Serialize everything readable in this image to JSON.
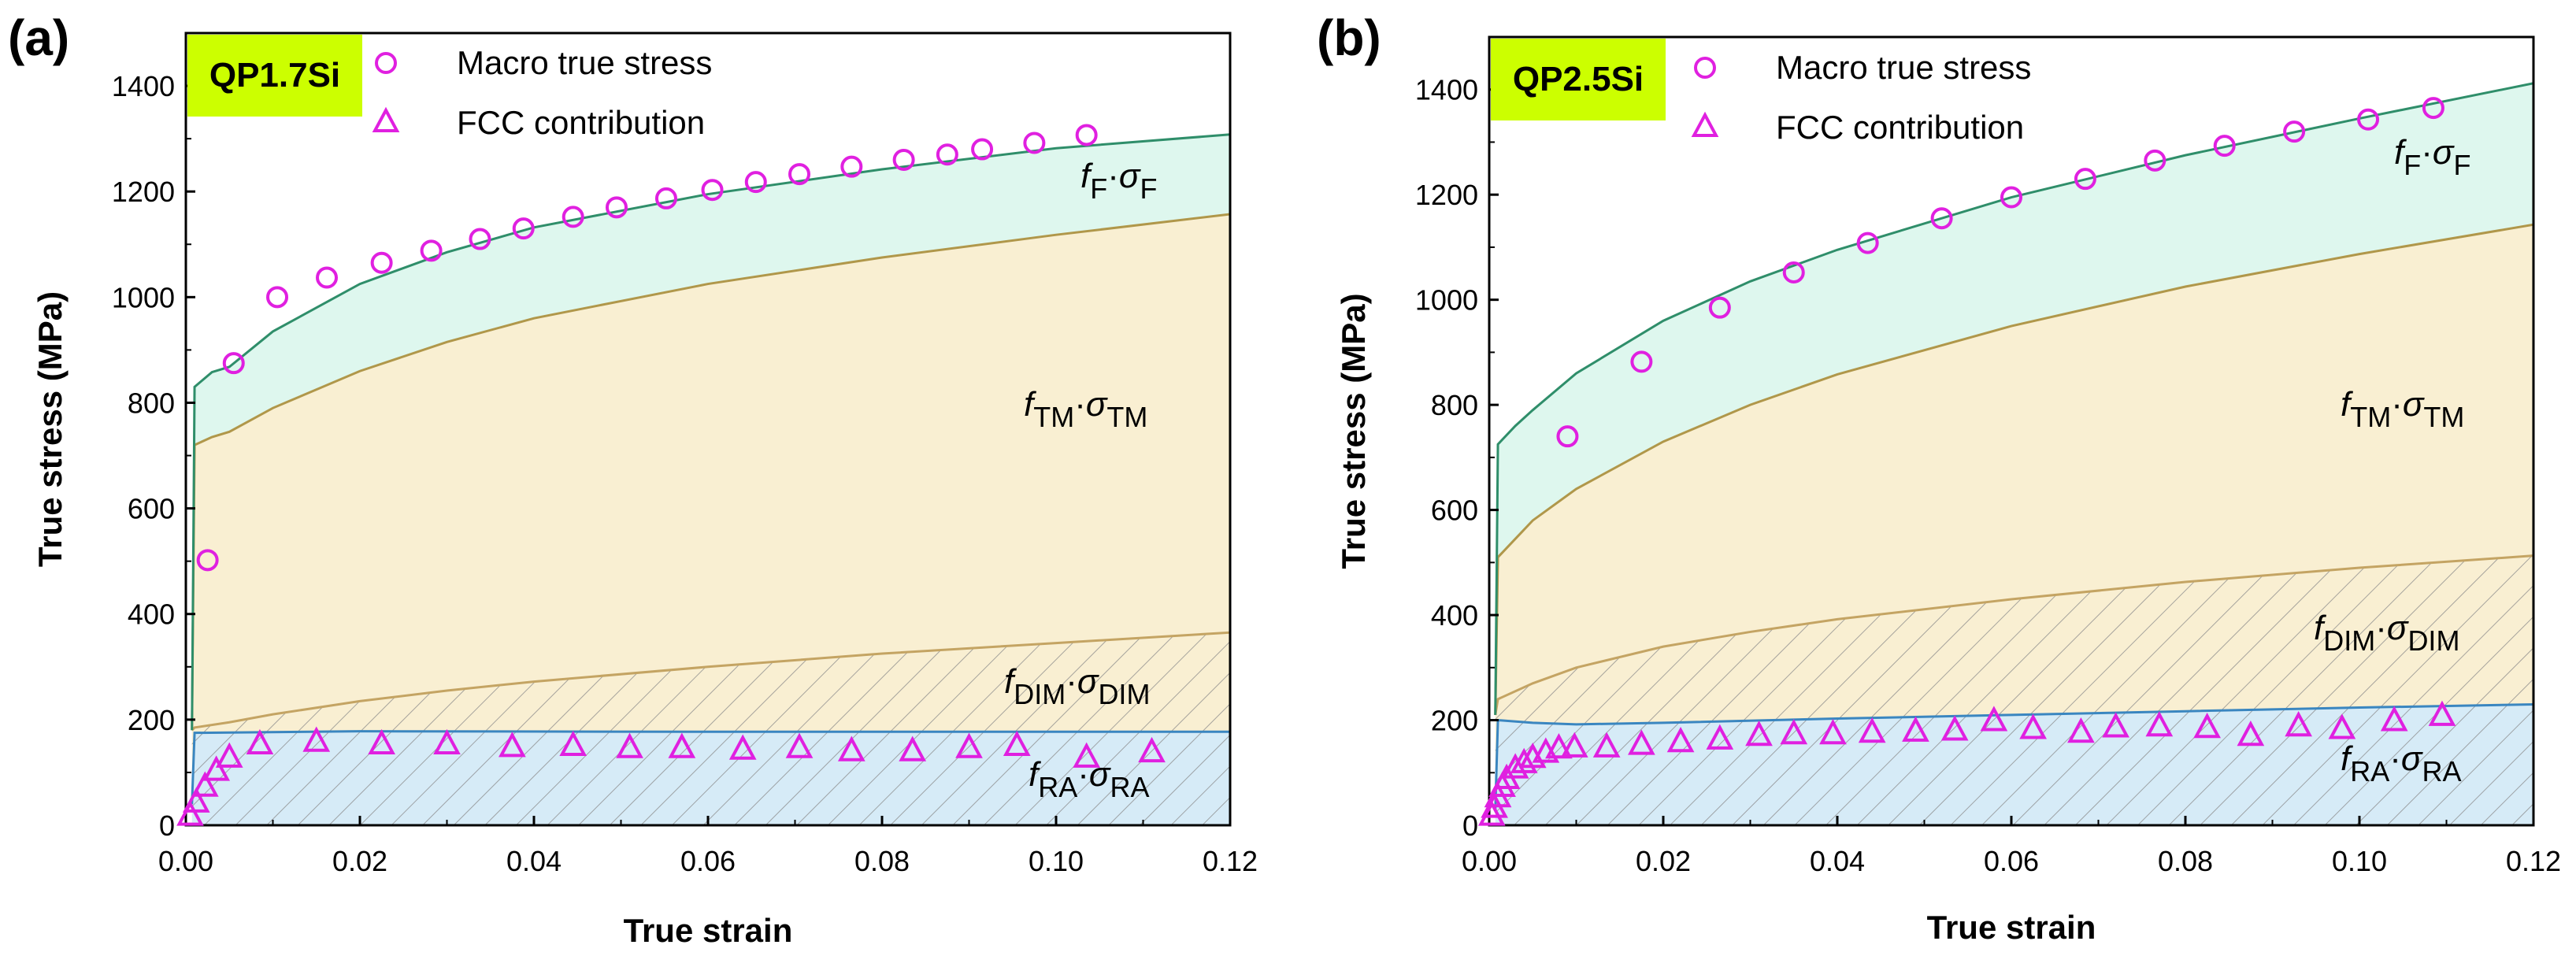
{
  "chart_data": [
    {
      "type": "area",
      "panel_label": "(a)",
      "sample": "QP1.7Si",
      "xlabel": "True strain",
      "ylabel": "True stress (MPa)",
      "xlim": [
        0,
        0.12
      ],
      "ylim": [
        0,
        1500
      ],
      "xticks": [
        "0.00",
        "0.02",
        "0.04",
        "0.06",
        "0.08",
        "0.10",
        "0.12"
      ],
      "yticks": [
        "0",
        "200",
        "400",
        "600",
        "800",
        "1000",
        "1200",
        "1400"
      ],
      "legend": {
        "location": "top",
        "entries": [
          {
            "name": "Macro true stress",
            "marker": "circle"
          },
          {
            "name": "FCC contribution",
            "marker": "triangle"
          }
        ]
      },
      "regions": [
        {
          "key": "RA",
          "label_f": "f",
          "label_f_sub": "RA",
          "label_sigma": "σ",
          "label_sigma_sub": "RA",
          "color": "#d6ebf7",
          "hatched": true
        },
        {
          "key": "DIM",
          "label_f": "f",
          "label_f_sub": "DIM",
          "label_sigma": "σ",
          "label_sigma_sub": "DIM",
          "color": "#f9efd2",
          "hatched": true
        },
        {
          "key": "TM",
          "label_f": "f",
          "label_f_sub": "TM",
          "label_sigma": "σ",
          "label_sigma_sub": "TM",
          "color": "#f9efd2",
          "hatched": false
        },
        {
          "key": "F",
          "label_f": "f",
          "label_f_sub": "F",
          "label_sigma": "σ",
          "label_sigma_sub": "F",
          "color": "#def7ee",
          "hatched": false
        }
      ],
      "boundaries": {
        "RA": [
          [
            0.0007,
            40
          ],
          [
            0.001,
            175
          ],
          [
            0.02,
            178
          ],
          [
            0.06,
            177
          ],
          [
            0.12,
            177
          ]
        ],
        "DIM": [
          [
            0.0007,
            180
          ],
          [
            0.001,
            185
          ],
          [
            0.005,
            195
          ],
          [
            0.01,
            210
          ],
          [
            0.02,
            235
          ],
          [
            0.03,
            255
          ],
          [
            0.04,
            272
          ],
          [
            0.06,
            300
          ],
          [
            0.08,
            325
          ],
          [
            0.1,
            345
          ],
          [
            0.12,
            365
          ]
        ],
        "TM": [
          [
            0.0007,
            180
          ],
          [
            0.001,
            720
          ],
          [
            0.003,
            735
          ],
          [
            0.005,
            745
          ],
          [
            0.01,
            790
          ],
          [
            0.02,
            860
          ],
          [
            0.03,
            915
          ],
          [
            0.04,
            960
          ],
          [
            0.06,
            1025
          ],
          [
            0.08,
            1075
          ],
          [
            0.1,
            1118
          ],
          [
            0.12,
            1157
          ]
        ],
        "F": [
          [
            0.0007,
            180
          ],
          [
            0.001,
            830
          ],
          [
            0.003,
            858
          ],
          [
            0.005,
            868
          ],
          [
            0.01,
            935
          ],
          [
            0.02,
            1025
          ],
          [
            0.03,
            1085
          ],
          [
            0.04,
            1132
          ],
          [
            0.06,
            1195
          ],
          [
            0.08,
            1242
          ],
          [
            0.1,
            1282
          ],
          [
            0.12,
            1308
          ]
        ]
      },
      "series": [
        {
          "name": "Macro true stress",
          "marker": "circle",
          "color": "#e020e0",
          "x": [
            0.0025,
            0.0055,
            0.0105,
            0.0162,
            0.0225,
            0.0282,
            0.0338,
            0.0388,
            0.0445,
            0.0495,
            0.0552,
            0.0605,
            0.0655,
            0.0705,
            0.0765,
            0.0825,
            0.0875,
            0.0915,
            0.0975,
            0.1035
          ],
          "y": [
            502,
            875,
            1000,
            1037,
            1065,
            1088,
            1110,
            1130,
            1152,
            1170,
            1187,
            1203,
            1218,
            1233,
            1247,
            1260,
            1270,
            1280,
            1292,
            1307
          ]
        },
        {
          "name": "FCC contribution",
          "marker": "triangle",
          "color": "#e020e0",
          "x": [
            0.0005,
            0.0012,
            0.0022,
            0.0035,
            0.005,
            0.0085,
            0.015,
            0.0225,
            0.03,
            0.0375,
            0.0445,
            0.051,
            0.057,
            0.064,
            0.0705,
            0.0765,
            0.0835,
            0.09,
            0.0955,
            0.1035,
            0.111
          ],
          "y": [
            20,
            45,
            75,
            105,
            130,
            155,
            160,
            155,
            155,
            150,
            152,
            148,
            148,
            145,
            148,
            142,
            142,
            148,
            152,
            130,
            140
          ]
        }
      ]
    },
    {
      "type": "area",
      "panel_label": "(b)",
      "sample": "QP2.5Si",
      "xlabel": "True strain",
      "ylabel": "True stress (MPa)",
      "xlim": [
        0,
        0.12
      ],
      "ylim": [
        0,
        1500
      ],
      "xticks": [
        "0.00",
        "0.02",
        "0.04",
        "0.06",
        "0.08",
        "0.10",
        "0.12"
      ],
      "yticks": [
        "0",
        "200",
        "400",
        "600",
        "800",
        "1000",
        "1200",
        "1400"
      ],
      "legend": {
        "location": "top",
        "entries": [
          {
            "name": "Macro true stress",
            "marker": "circle"
          },
          {
            "name": "FCC contribution",
            "marker": "triangle"
          }
        ]
      },
      "regions": [
        {
          "key": "RA",
          "label_f": "f",
          "label_f_sub": "RA",
          "label_sigma": "σ",
          "label_sigma_sub": "RA",
          "color": "#d6ebf7",
          "hatched": true
        },
        {
          "key": "DIM",
          "label_f": "f",
          "label_f_sub": "DIM",
          "label_sigma": "σ",
          "label_sigma_sub": "DIM",
          "color": "#f9efd2",
          "hatched": true
        },
        {
          "key": "TM",
          "label_f": "f",
          "label_f_sub": "TM",
          "label_sigma": "σ",
          "label_sigma_sub": "TM",
          "color": "#f9efd2",
          "hatched": false
        },
        {
          "key": "F",
          "label_f": "f",
          "label_f_sub": "F",
          "label_sigma": "σ",
          "label_sigma_sub": "F",
          "color": "#def7ee",
          "hatched": false
        }
      ],
      "boundaries": {
        "RA": [
          [
            0.0007,
            30
          ],
          [
            0.001,
            200
          ],
          [
            0.005,
            195
          ],
          [
            0.01,
            192
          ],
          [
            0.02,
            195
          ],
          [
            0.04,
            203
          ],
          [
            0.06,
            210
          ],
          [
            0.08,
            217
          ],
          [
            0.1,
            224
          ],
          [
            0.12,
            230
          ]
        ],
        "DIM": [
          [
            0.0007,
            210
          ],
          [
            0.001,
            240
          ],
          [
            0.005,
            270
          ],
          [
            0.01,
            300
          ],
          [
            0.02,
            340
          ],
          [
            0.03,
            368
          ],
          [
            0.04,
            392
          ],
          [
            0.06,
            430
          ],
          [
            0.08,
            463
          ],
          [
            0.1,
            490
          ],
          [
            0.12,
            513
          ]
        ],
        "TM": [
          [
            0.0007,
            210
          ],
          [
            0.001,
            510
          ],
          [
            0.003,
            545
          ],
          [
            0.005,
            580
          ],
          [
            0.01,
            640
          ],
          [
            0.02,
            730
          ],
          [
            0.03,
            800
          ],
          [
            0.04,
            858
          ],
          [
            0.06,
            950
          ],
          [
            0.08,
            1025
          ],
          [
            0.1,
            1087
          ],
          [
            0.12,
            1143
          ]
        ],
        "F": [
          [
            0.0007,
            210
          ],
          [
            0.001,
            725
          ],
          [
            0.003,
            760
          ],
          [
            0.005,
            790
          ],
          [
            0.01,
            860
          ],
          [
            0.02,
            960
          ],
          [
            0.03,
            1035
          ],
          [
            0.04,
            1095
          ],
          [
            0.06,
            1195
          ],
          [
            0.08,
            1275
          ],
          [
            0.1,
            1345
          ],
          [
            0.12,
            1412
          ]
        ]
      },
      "series": [
        {
          "name": "Macro true stress",
          "marker": "circle",
          "color": "#e020e0",
          "x": [
            0.009,
            0.0175,
            0.0265,
            0.035,
            0.0435,
            0.052,
            0.06,
            0.0685,
            0.0765,
            0.0845,
            0.0925,
            0.101,
            0.1085
          ],
          "y": [
            740,
            882,
            985,
            1052,
            1108,
            1155,
            1195,
            1230,
            1265,
            1293,
            1320,
            1343,
            1365
          ]
        },
        {
          "name": "FCC contribution",
          "marker": "triangle",
          "color": "#e020e0",
          "x": [
            0.0003,
            0.0006,
            0.001,
            0.0015,
            0.002,
            0.003,
            0.004,
            0.005,
            0.0065,
            0.008,
            0.0098,
            0.0135,
            0.0175,
            0.022,
            0.0265,
            0.031,
            0.035,
            0.0395,
            0.044,
            0.049,
            0.0535,
            0.058,
            0.0625,
            0.068,
            0.072,
            0.077,
            0.0825,
            0.0875,
            0.093,
            0.098,
            0.104,
            0.1095
          ],
          "y": [
            20,
            35,
            55,
            75,
            90,
            110,
            120,
            130,
            140,
            148,
            150,
            150,
            155,
            160,
            165,
            172,
            175,
            175,
            178,
            180,
            182,
            200,
            185,
            178,
            188,
            190,
            187,
            172,
            190,
            185,
            200,
            210
          ]
        }
      ]
    }
  ]
}
